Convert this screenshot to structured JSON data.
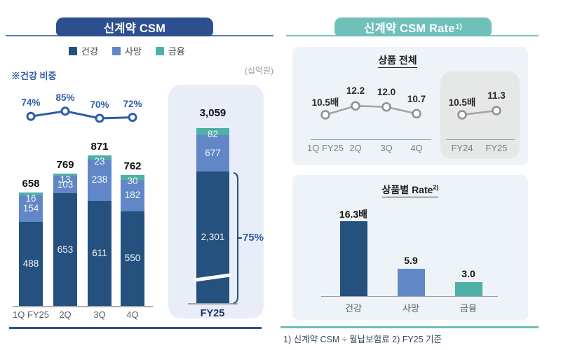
{
  "left_panel": {
    "title": "신계약 CSM",
    "unit_label": "(십억원)",
    "health_share_label": "※건강 비중",
    "legend": [
      {
        "label": "건강",
        "color": "#24517E"
      },
      {
        "label": "사망",
        "color": "#6287C6"
      },
      {
        "label": "금융",
        "color": "#4FB0A5"
      }
    ]
  },
  "right_panel": {
    "title": "신계약 CSM Rate",
    "title_sup": "1)",
    "section1_title": "상품 전체",
    "section2_title": "상품별 Rate",
    "section2_title_sup": "2)",
    "footnote": "1) 신계약 CSM ÷ 월납보험료   2) FY25 기준"
  },
  "chart_data": [
    {
      "id": "quarterly_new_csm",
      "type": "bar",
      "subtype": "stacked",
      "title": "신계약 CSM",
      "unit": "십억원",
      "categories": [
        "1Q FY25",
        "2Q",
        "3Q",
        "4Q"
      ],
      "series": [
        {
          "name": "건강",
          "color": "#24517E",
          "values": [
            488,
            653,
            611,
            550
          ]
        },
        {
          "name": "사망",
          "color": "#6287C6",
          "values": [
            154,
            103,
            238,
            182
          ]
        },
        {
          "name": "금융",
          "color": "#4FB0A5",
          "values": [
            16,
            13,
            23,
            30
          ]
        }
      ],
      "totals": [
        "658",
        "769",
        "871",
        "762"
      ],
      "overlay_line": {
        "name": "건강 비중",
        "labels": [
          "74%",
          "85%",
          "70%",
          "72%"
        ],
        "values": [
          74,
          85,
          70,
          72
        ]
      }
    },
    {
      "id": "fy25_new_csm",
      "type": "bar",
      "subtype": "stacked_single",
      "category": "FY25",
      "total": "3,059",
      "segments": [
        {
          "name": "건강",
          "color": "#24517E",
          "label": "2,301",
          "value": 2301
        },
        {
          "name": "사망",
          "color": "#6287C6",
          "label": "677",
          "value": 677
        },
        {
          "name": "금융",
          "color": "#4FB0A5",
          "label": "82",
          "value": 82
        }
      ],
      "annotation": {
        "label": "75%",
        "applies_to": "건강"
      },
      "axis_break": true
    },
    {
      "id": "csm_rate_total",
      "type": "line",
      "title": "상품 전체",
      "quarterly": {
        "categories": [
          "1Q FY25",
          "2Q",
          "3Q",
          "4Q"
        ],
        "values": [
          10.5,
          12.2,
          12.0,
          10.7
        ],
        "labels": [
          "10.5배",
          "12.2",
          "12.0",
          "10.7"
        ]
      },
      "annual": {
        "categories": [
          "FY24",
          "FY25"
        ],
        "values": [
          10.5,
          11.3
        ],
        "labels": [
          "10.5배",
          "11.3"
        ]
      }
    },
    {
      "id": "csm_rate_by_product",
      "type": "bar",
      "title": "상품별 Rate",
      "categories": [
        "건강",
        "사망",
        "금융"
      ],
      "values": [
        16.3,
        5.9,
        3.0
      ],
      "labels": [
        "16.3배",
        "5.9",
        "3.0"
      ],
      "colors": [
        "#24517E",
        "#6287C6",
        "#4FB0A5"
      ]
    }
  ]
}
